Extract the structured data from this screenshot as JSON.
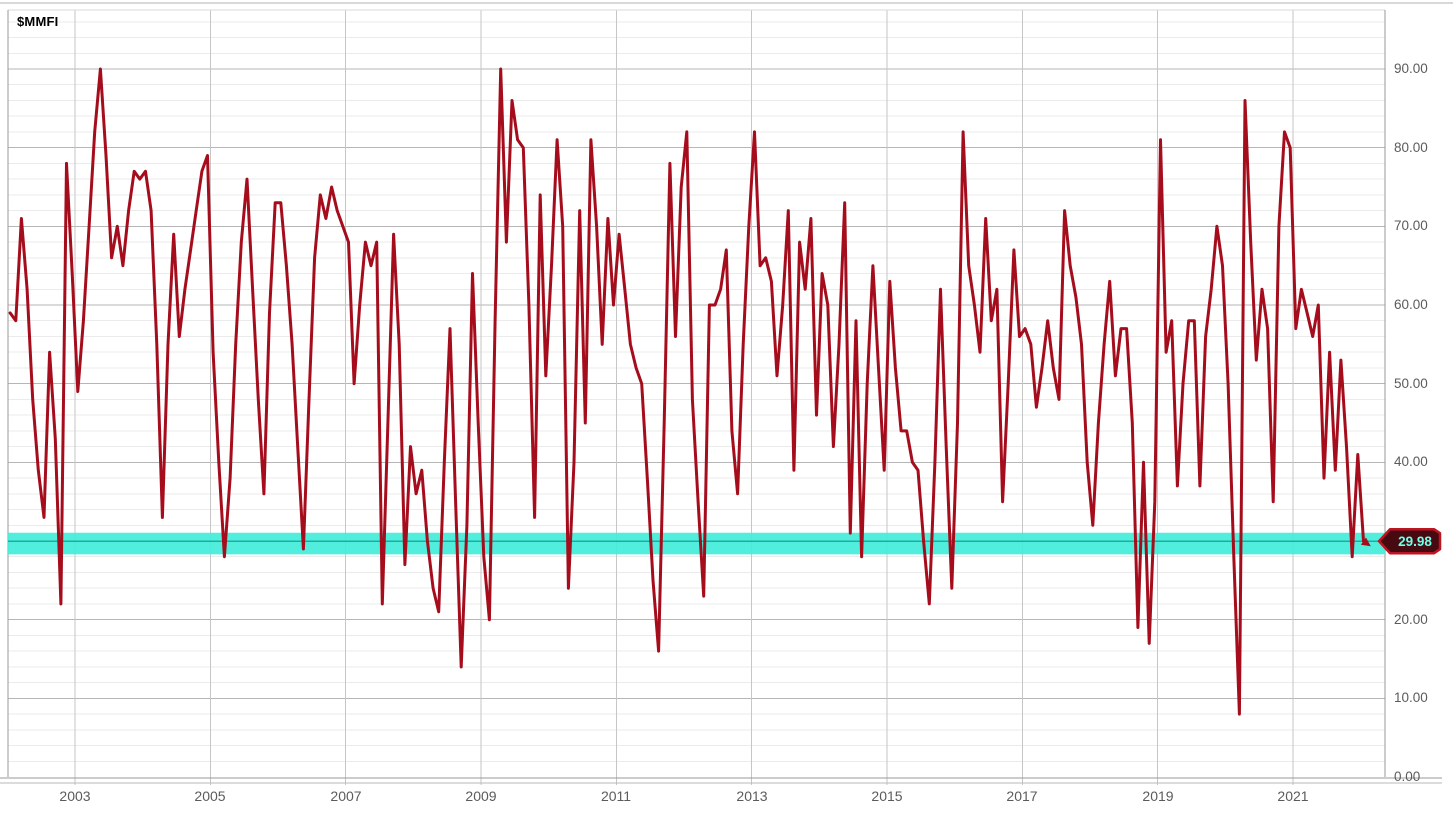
{
  "title": "$MMFI",
  "price_tag": {
    "value": "29.98"
  },
  "colors": {
    "line": "#A50D1D",
    "band_fill": "#43EDDA",
    "band_center_line": "#1AAE9F",
    "tag_fill": "#470A10",
    "tag_border": "#BE1523",
    "tag_text": "#70FFE8",
    "grid_minor": "#ebebeb",
    "grid_major": "#b6b6b6",
    "grid_vertical": "#c6c6c6",
    "plot_border": "#9a9a9a",
    "axis_text": "#5b5b5b"
  },
  "chart_data": {
    "type": "line",
    "title": "$MMFI",
    "xlabel": "",
    "ylabel": "",
    "xlim": [
      2002.01,
      2022.36
    ],
    "ylim": [
      0,
      97.5
    ],
    "grid": {
      "minor_step": 2,
      "major_step": 10,
      "vertical_years_step": 2
    },
    "legend": "none",
    "x_ticks": [
      {
        "value": 2003,
        "label": "2003"
      },
      {
        "value": 2005,
        "label": "2005"
      },
      {
        "value": 2007,
        "label": "2007"
      },
      {
        "value": 2009,
        "label": "2009"
      },
      {
        "value": 2011,
        "label": "2011"
      },
      {
        "value": 2013,
        "label": "2013"
      },
      {
        "value": 2015,
        "label": "2015"
      },
      {
        "value": 2017,
        "label": "2017"
      },
      {
        "value": 2019,
        "label": "2019"
      },
      {
        "value": 2021,
        "label": "2021"
      }
    ],
    "y_ticks": [
      {
        "value": 90,
        "label": "90.00"
      },
      {
        "value": 80,
        "label": "80.00"
      },
      {
        "value": 70,
        "label": "70.00"
      },
      {
        "value": 60,
        "label": "60.00"
      },
      {
        "value": 50,
        "label": "50.00"
      },
      {
        "value": 40,
        "label": "40.00"
      },
      {
        "value": 20,
        "label": "20.00"
      },
      {
        "value": 10,
        "label": "10.00"
      },
      {
        "value": 0,
        "label": "0.00"
      }
    ],
    "highlight_band": {
      "from": 28.3,
      "to": 31.05,
      "center": 29.98
    },
    "last_value": 29.98,
    "series": [
      {
        "name": "$MMFI",
        "start": "2002-01",
        "interval": "monthly",
        "values": [
          59,
          58,
          71,
          62,
          48,
          39,
          33,
          54,
          43,
          22,
          78,
          64,
          49,
          58,
          70,
          82,
          90,
          79,
          66,
          70,
          65,
          72,
          77,
          76,
          77,
          72,
          55,
          33,
          55,
          69,
          56,
          62,
          67,
          72,
          77,
          79,
          54,
          40,
          28,
          38,
          55,
          68,
          76,
          62,
          48,
          36,
          59,
          73,
          73,
          65,
          55,
          42,
          29,
          48,
          66,
          74,
          71,
          75,
          72,
          70,
          68,
          50,
          60,
          68,
          65,
          68,
          22,
          45,
          69,
          55,
          27,
          42,
          36,
          39,
          30,
          24,
          21,
          40,
          57,
          35,
          14,
          32,
          64,
          45,
          28,
          20,
          58,
          90,
          68,
          86,
          81,
          80,
          60,
          33,
          74,
          51,
          65,
          81,
          70,
          24,
          40,
          72,
          45,
          81,
          70,
          55,
          71,
          60,
          69,
          62,
          55,
          52,
          50,
          38,
          25,
          16,
          45,
          78,
          56,
          75,
          82,
          48,
          35,
          23,
          60,
          60,
          62,
          67,
          44,
          36,
          55,
          70,
          82,
          65,
          66,
          63,
          51,
          60,
          72,
          39,
          68,
          62,
          71,
          46,
          64,
          60,
          42,
          55,
          73,
          31,
          58,
          28,
          50,
          65,
          52,
          39,
          63,
          52,
          44,
          44,
          40,
          39,
          30,
          22,
          40,
          62,
          42,
          24,
          45,
          82,
          65,
          60,
          54,
          71,
          58,
          62,
          35,
          50,
          67,
          56,
          57,
          55,
          47,
          52,
          58,
          52,
          48,
          72,
          65,
          61,
          55,
          40,
          32,
          45,
          55,
          63,
          51,
          57,
          57,
          45,
          19,
          40,
          17,
          35,
          81,
          54,
          58,
          37,
          50,
          58,
          58,
          37,
          56,
          62,
          70,
          65,
          50,
          28,
          8,
          86,
          68,
          53,
          62,
          57,
          35,
          70,
          82,
          80,
          57,
          62,
          59,
          56,
          60,
          38,
          54,
          39,
          53,
          42,
          28,
          41,
          29.98
        ]
      }
    ]
  }
}
